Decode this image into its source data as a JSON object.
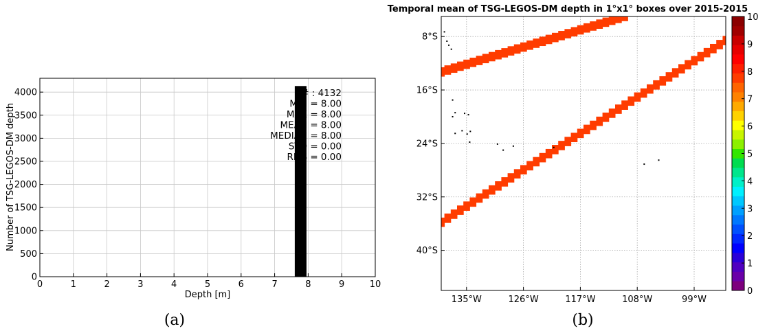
{
  "captions": {
    "a": "(a)",
    "b": "(b)"
  },
  "chart_data": [
    {
      "type": "bar",
      "title": "",
      "xlabel": "Depth [m]",
      "ylabel": "Number of TSG-LEGOS-DM depth",
      "xlim": [
        0,
        10
      ],
      "ylim": [
        0,
        4300
      ],
      "xticks": [
        "0",
        "1",
        "2",
        "3",
        "4",
        "5",
        "6",
        "7",
        "8",
        "9",
        "10"
      ],
      "yticks": [
        "0",
        "500",
        "1000",
        "1500",
        "2000",
        "2500",
        "3000",
        "3500",
        "4000"
      ],
      "grid": true,
      "bars": [
        {
          "x_start": 7.6,
          "x_end": 7.95,
          "value": 4132,
          "color": "#000000"
        }
      ],
      "stats_lines": [
        "# : 4132",
        "MIN = 8.00",
        "MAX =  8.00",
        "MEAN = 8.00",
        "MEDIAN = 8.00",
        "STD = 0.00",
        "RMS = 0.00"
      ]
    },
    {
      "type": "heatmap",
      "title": "Temporal mean of TSG-LEGOS-DM depth in 1°x1° boxes over 2015-2015",
      "xticks": [
        "135°W",
        "126°W",
        "117°W",
        "108°W",
        "99°W"
      ],
      "yticks": [
        "8°S",
        "16°S",
        "24°S",
        "32°S",
        "40°S"
      ],
      "lon_range": [
        -139,
        -94
      ],
      "lat_range": [
        -46,
        -5
      ],
      "grid": "dotted",
      "colorbar": {
        "min": 0,
        "max": 10,
        "ticks": [
          "0",
          "1",
          "2",
          "3",
          "4",
          "5",
          "6",
          "7",
          "8",
          "9",
          "10"
        ],
        "colors": [
          "#7d007d",
          "#6a00a8",
          "#5000c0",
          "#2a00d8",
          "#0000ff",
          "#0028ff",
          "#0050ff",
          "#0078ff",
          "#00a0ff",
          "#00c8ff",
          "#00f0ff",
          "#00f0c8",
          "#00e68c",
          "#00dc50",
          "#32e600",
          "#8cf000",
          "#c8f500",
          "#ffff00",
          "#ffd200",
          "#ffaa00",
          "#ff8200",
          "#ff6400",
          "#ff3c00",
          "#ff1e00",
          "#ff0000",
          "#e60000",
          "#c80000",
          "#a00000",
          "#8b0000"
        ]
      },
      "tracks": [
        {
          "value": 8.0,
          "color": "#ff3c00",
          "start": {
            "lon": -139,
            "lat": -13.3
          },
          "end": {
            "lon": -110,
            "lat": -5.0
          }
        },
        {
          "value": 8.0,
          "color": "#ff3c00",
          "start": {
            "lon": -139,
            "lat": -35.8
          },
          "end": {
            "lon": -94,
            "lat": -8.6
          }
        }
      ],
      "land_specks": [
        {
          "lon": -138.5,
          "lat": -7.3
        },
        {
          "lon": -138.1,
          "lat": -8.7
        },
        {
          "lon": -137.8,
          "lat": -9.3
        },
        {
          "lon": -137.4,
          "lat": -9.9
        },
        {
          "lon": -137.2,
          "lat": -17.5
        },
        {
          "lon": -136.8,
          "lat": -19.4
        },
        {
          "lon": -137.2,
          "lat": -20.0
        },
        {
          "lon": -135.3,
          "lat": -19.5
        },
        {
          "lon": -134.7,
          "lat": -19.7
        },
        {
          "lon": -135.7,
          "lat": -22.1
        },
        {
          "lon": -134.9,
          "lat": -22.6
        },
        {
          "lon": -134.4,
          "lat": -22.2
        },
        {
          "lon": -136.8,
          "lat": -22.5
        },
        {
          "lon": -134.5,
          "lat": -23.8
        },
        {
          "lon": -130.1,
          "lat": -24.1
        },
        {
          "lon": -129.2,
          "lat": -25.0
        },
        {
          "lon": -127.6,
          "lat": -24.4
        },
        {
          "lon": -121.2,
          "lat": -24.6
        },
        {
          "lon": -106.9,
          "lat": -27.1
        },
        {
          "lon": -104.6,
          "lat": -26.5
        }
      ]
    }
  ]
}
